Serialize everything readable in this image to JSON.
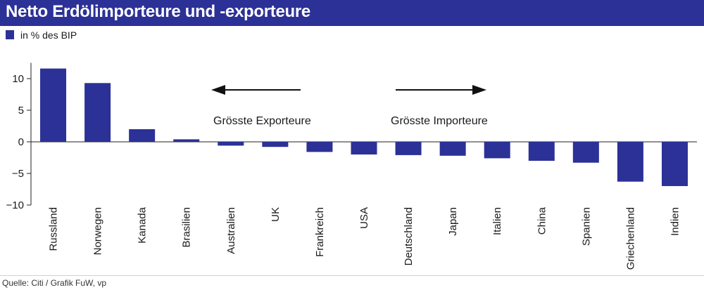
{
  "header": {
    "title": "Netto Erdölimporteure und -exporteure"
  },
  "source": "Quelle: Citi / Grafik FuW, vp",
  "colors": {
    "bar": "#2b3196",
    "header": "#2b3196"
  },
  "chart_data": {
    "type": "bar",
    "title": "Netto Erdölimporteure und -exporteure",
    "legend": {
      "label": "in % des BIP",
      "position": "top-left"
    },
    "categories": [
      "Russland",
      "Norwegen",
      "Kanada",
      "Brasilien",
      "Australien",
      "UK",
      "Frankreich",
      "USA",
      "Deutschland",
      "Japan",
      "Italien",
      "China",
      "Spanien",
      "Griechenland",
      "Indien"
    ],
    "values": [
      11.6,
      9.3,
      2.0,
      0.4,
      -0.6,
      -0.8,
      -1.6,
      -2.0,
      -2.1,
      -2.2,
      -2.6,
      -3.0,
      -3.3,
      -6.3,
      -7.0
    ],
    "ylim": [
      -10,
      12.5
    ],
    "yticks": [
      10,
      5,
      0,
      -5,
      -10
    ],
    "grid": false,
    "annotations": [
      {
        "text": "Grösste Exporteure",
        "arrow": "left"
      },
      {
        "text": "Grösste Importeure",
        "arrow": "right"
      }
    ]
  }
}
